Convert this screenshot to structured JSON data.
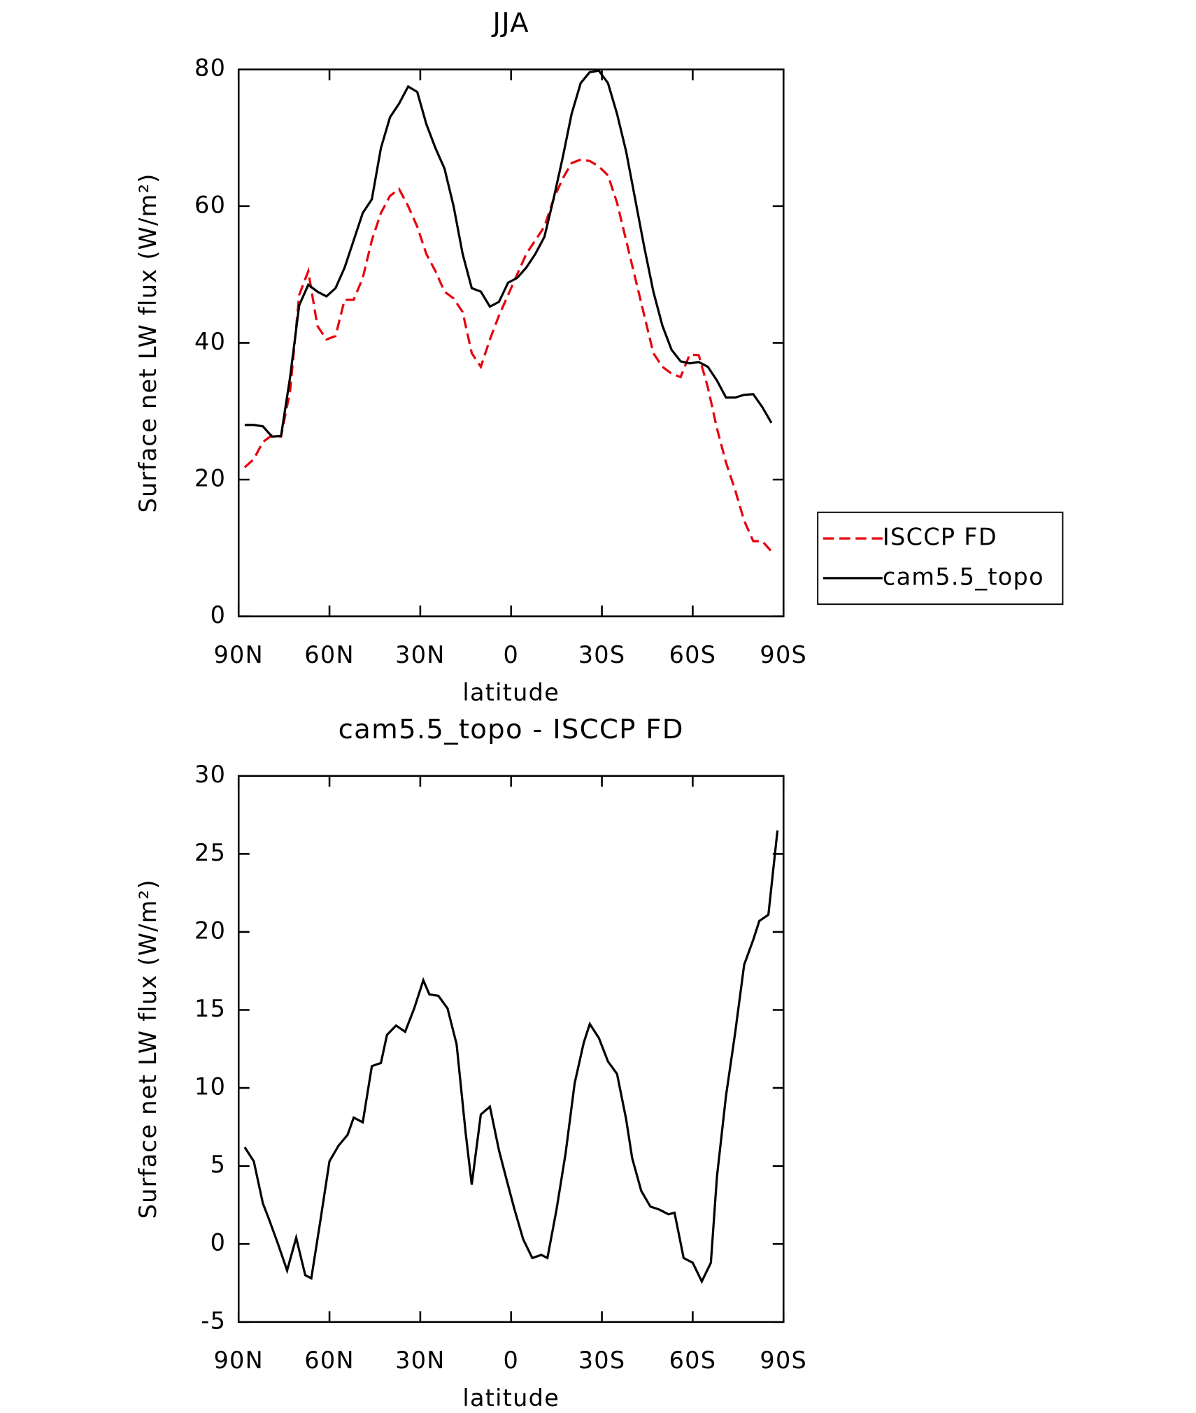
{
  "chart_data": [
    {
      "type": "line",
      "title": "JJA",
      "xlabel": "latitude",
      "ylabel": "Surface net LW flux (W/m²)",
      "x": [
        88,
        85,
        82,
        79,
        76,
        73,
        70,
        67,
        64,
        61,
        58,
        55,
        52,
        49,
        46,
        43,
        40,
        37,
        34,
        31,
        28,
        25,
        22,
        19,
        16,
        13,
        10,
        7,
        4,
        1,
        -2,
        -5,
        -8,
        -11,
        -14,
        -17,
        -20,
        -23,
        -26,
        -29,
        -32,
        -35,
        -38,
        -41,
        -44,
        -47,
        -50,
        -53,
        -56,
        -59,
        -62,
        -65,
        -68,
        -71,
        -74,
        -77,
        -80,
        -83,
        -86
      ],
      "xlim": [
        90,
        -90
      ],
      "xticks": [
        {
          "value": 90,
          "label": "90N"
        },
        {
          "value": 60,
          "label": "60N"
        },
        {
          "value": 30,
          "label": "30N"
        },
        0,
        {
          "value": -30,
          "label": "30S"
        },
        {
          "value": -60,
          "label": "60S"
        },
        {
          "value": -90,
          "label": "90S"
        }
      ],
      "ylim": [
        0,
        80
      ],
      "yticks": [
        0,
        20,
        40,
        60,
        80
      ],
      "legend": "right",
      "series": [
        {
          "name": "ISCCP FD",
          "color": "#e8000b",
          "dash": true,
          "values": [
            21.8,
            23,
            25.5,
            26.5,
            26.3,
            33,
            47,
            50.5,
            42.5,
            40.5,
            41,
            46.3,
            46.3,
            49.5,
            55,
            59,
            61.5,
            62.5,
            60,
            57,
            53,
            50.5,
            47.5,
            46.5,
            44.5,
            38.5,
            36.5,
            40.5,
            44,
            47,
            50,
            53,
            55,
            57,
            61,
            64,
            66.3,
            66.8,
            66.6,
            65.8,
            64.5,
            60.5,
            55,
            49.5,
            44,
            38.5,
            36.5,
            35.5,
            35,
            38.3,
            38.2,
            33.5,
            27.5,
            22.5,
            18.5,
            14,
            11,
            11,
            9.5
          ]
        },
        {
          "name": "cam5.5_topo",
          "color": "#000000",
          "dash": false,
          "values": [
            28,
            28,
            27.8,
            26.3,
            26.4,
            35,
            45.5,
            48.5,
            47.5,
            46.8,
            48,
            51,
            55,
            59,
            61,
            68.5,
            73,
            75,
            77.5,
            76.7,
            72,
            68.5,
            65.5,
            60,
            53,
            48,
            47.5,
            45.3,
            46,
            48.8,
            49.5,
            51,
            53,
            55.5,
            61,
            67,
            73.5,
            78,
            79.6,
            79.8,
            78,
            73.5,
            68,
            61,
            54,
            47.5,
            42.5,
            39,
            37.3,
            37,
            37.2,
            36.5,
            34.5,
            32,
            32,
            32.4,
            32.5,
            30.6,
            28.3
          ]
        }
      ]
    },
    {
      "type": "line",
      "title": "cam5.5_topo - ISCCP FD",
      "xlabel": "latitude",
      "ylabel": "Surface net LW flux (W/m²)",
      "x": [
        88,
        85,
        82,
        80,
        77,
        74,
        71,
        68,
        66,
        63,
        60,
        57,
        54,
        52,
        49,
        46,
        43,
        41,
        38,
        35,
        32,
        29,
        27,
        24,
        21,
        18,
        15,
        13,
        10,
        7,
        4,
        2,
        -1,
        -4,
        -7,
        -10,
        -12,
        -15,
        -18,
        -21,
        -24,
        -26,
        -29,
        -32,
        -35,
        -38,
        -40,
        -43,
        -46,
        -49,
        -52,
        -54,
        -57,
        -60,
        -63,
        -66,
        -68,
        -71,
        -74,
        -77,
        -80,
        -82,
        -85,
        -88
      ],
      "xlim": [
        90,
        -90
      ],
      "xticks": [
        {
          "value": 90,
          "label": "90N"
        },
        {
          "value": 60,
          "label": "60N"
        },
        {
          "value": 30,
          "label": "30N"
        },
        0,
        {
          "value": -30,
          "label": "30S"
        },
        {
          "value": -60,
          "label": "60S"
        },
        {
          "value": -90,
          "label": "90S"
        }
      ],
      "ylim": [
        -5,
        30
      ],
      "yticks": [
        -5,
        0,
        5,
        10,
        15,
        20,
        25,
        30
      ],
      "series": [
        {
          "name": null,
          "color": "#000000",
          "dash": false,
          "values": [
            6.2,
            5.3,
            2.6,
            1.6,
            0,
            -1.7,
            0.4,
            -2,
            -2.2,
            1.5,
            5.3,
            6.3,
            7,
            8.1,
            7.8,
            11.4,
            11.6,
            13.4,
            14,
            13.6,
            15.1,
            16.9,
            16,
            15.9,
            15.1,
            12.8,
            7.1,
            3.8,
            8.3,
            8.8,
            6,
            4.5,
            2.3,
            0.3,
            -0.9,
            -0.7,
            -0.9,
            2.2,
            5.8,
            10.3,
            12.9,
            14.1,
            13.2,
            11.7,
            10.9,
            8,
            5.5,
            3.4,
            2.4,
            2.2,
            1.9,
            2,
            -0.9,
            -1.2,
            -2.4,
            -1.2,
            4.3,
            9.5,
            13.5,
            17.9,
            19.5,
            20.7,
            21.1,
            26.5
          ]
        }
      ]
    }
  ]
}
